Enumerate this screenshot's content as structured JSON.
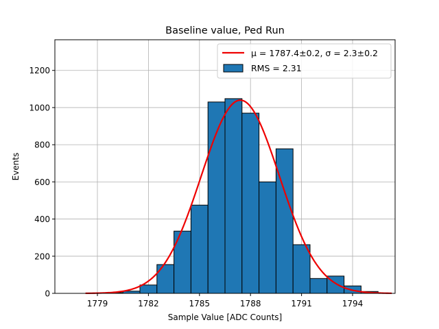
{
  "chart_data": {
    "type": "bar",
    "title": "Baseline value, Ped Run",
    "xlabel": "Sample Value [ADC Counts]",
    "ylabel": "Events",
    "xlim": [
      1776.5,
      1796.5
    ],
    "ylim": [
      0,
      1365
    ],
    "grid": true,
    "legend_position": "top-right",
    "x_ticks": [
      1779,
      1782,
      1785,
      1788,
      1791,
      1794
    ],
    "y_ticks": [
      0,
      200,
      400,
      600,
      800,
      1000,
      1200
    ],
    "bin_width": 1,
    "series": [
      {
        "name": "RMS = 2.31",
        "kind": "histogram",
        "color": "#1f77b4",
        "edge_color": "#000000",
        "bin_centers": [
          1779,
          1780,
          1781,
          1782,
          1783,
          1784,
          1785,
          1786,
          1787,
          1788,
          1789,
          1790,
          1791,
          1792,
          1793,
          1794,
          1795
        ],
        "values": [
          2,
          4,
          12,
          45,
          155,
          335,
          475,
          1030,
          1048,
          970,
          600,
          778,
          262,
          80,
          93,
          40,
          10
        ]
      },
      {
        "name": "μ = 1787.4±0.2, σ = 2.3±0.2",
        "kind": "gaussian-fit",
        "color": "#ee0000",
        "mu": 1787.4,
        "sigma": 2.3,
        "amplitude": 1040,
        "x_range": [
          1778.3,
          1796.3
        ]
      }
    ],
    "legend": {
      "fit_label": "μ = 1787.4±0.2, σ = 2.3±0.2",
      "hist_label": "RMS = 2.31"
    }
  }
}
